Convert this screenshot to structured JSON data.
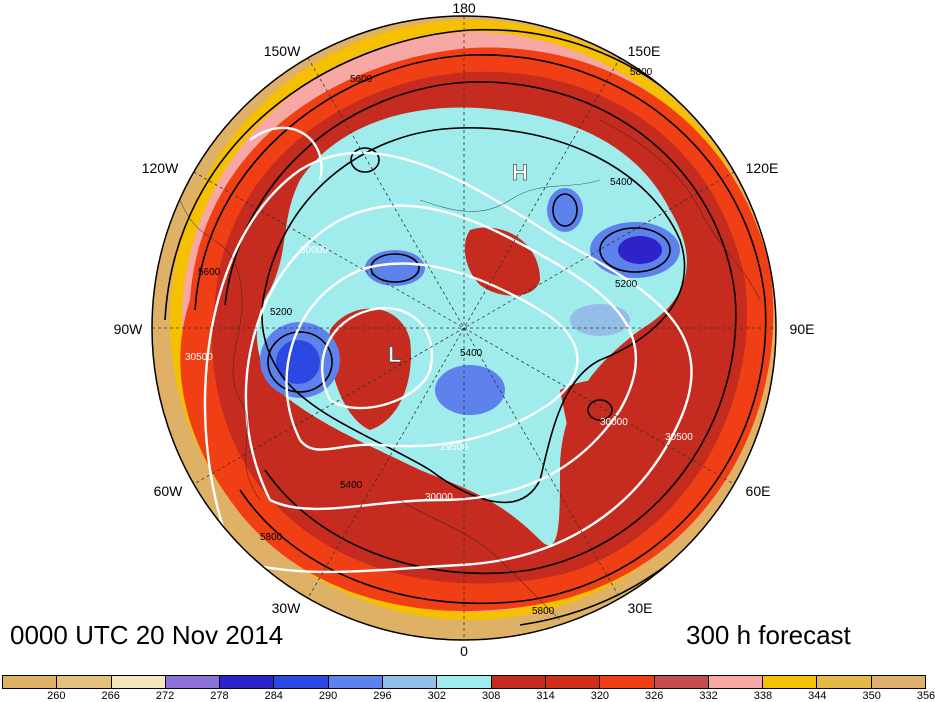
{
  "map": {
    "longitude_labels": {
      "top": "180",
      "bottom": "0",
      "left": "90W",
      "right": "90E",
      "upper_left_1": "150W",
      "upper_left_2": "120W",
      "lower_left_1": "60W",
      "lower_left_2": "30W",
      "upper_right_1": "150E",
      "upper_right_2": "120E",
      "lower_right_1": "60E",
      "lower_right_2": "30E"
    },
    "contour_labels": {
      "height_5800": "5800",
      "height_5600": "5600",
      "height_5400": "5400",
      "height_5200": "5200",
      "pv_30000": "30000",
      "pv_30500": "30500",
      "pv_29500": "29500"
    },
    "markers": {
      "low": "L",
      "high": "H"
    },
    "colors": {
      "cold_core": "#2a3fd6",
      "mid_blue": "#6f8ff0",
      "cyan": "#88f0f0",
      "red": "#c4241c",
      "orange_red": "#ef3c1a",
      "pink": "#f7a5a5",
      "gold": "#f5c300",
      "tan": "#e0b060"
    }
  },
  "titles": {
    "valid_time": "0000 UTC 20 Nov 2014",
    "forecast_hour": "300 h forecast"
  },
  "colorbar": {
    "colors": [
      "#dfb166",
      "#e3c17f",
      "#f6e6bf",
      "#8c72d8",
      "#2d23c9",
      "#2c48e3",
      "#5d82ec",
      "#94bee8",
      "#a0ecec",
      "#c52b1f",
      "#cf2e17",
      "#f03f15",
      "#c34c4c",
      "#f7a7a4",
      "#f5c000",
      "#e6b84a",
      "#deaf6a"
    ],
    "labels": [
      "260",
      "266",
      "272",
      "278",
      "284",
      "290",
      "296",
      "302",
      "308",
      "314",
      "320",
      "326",
      "332",
      "338",
      "344",
      "350",
      "356"
    ]
  }
}
